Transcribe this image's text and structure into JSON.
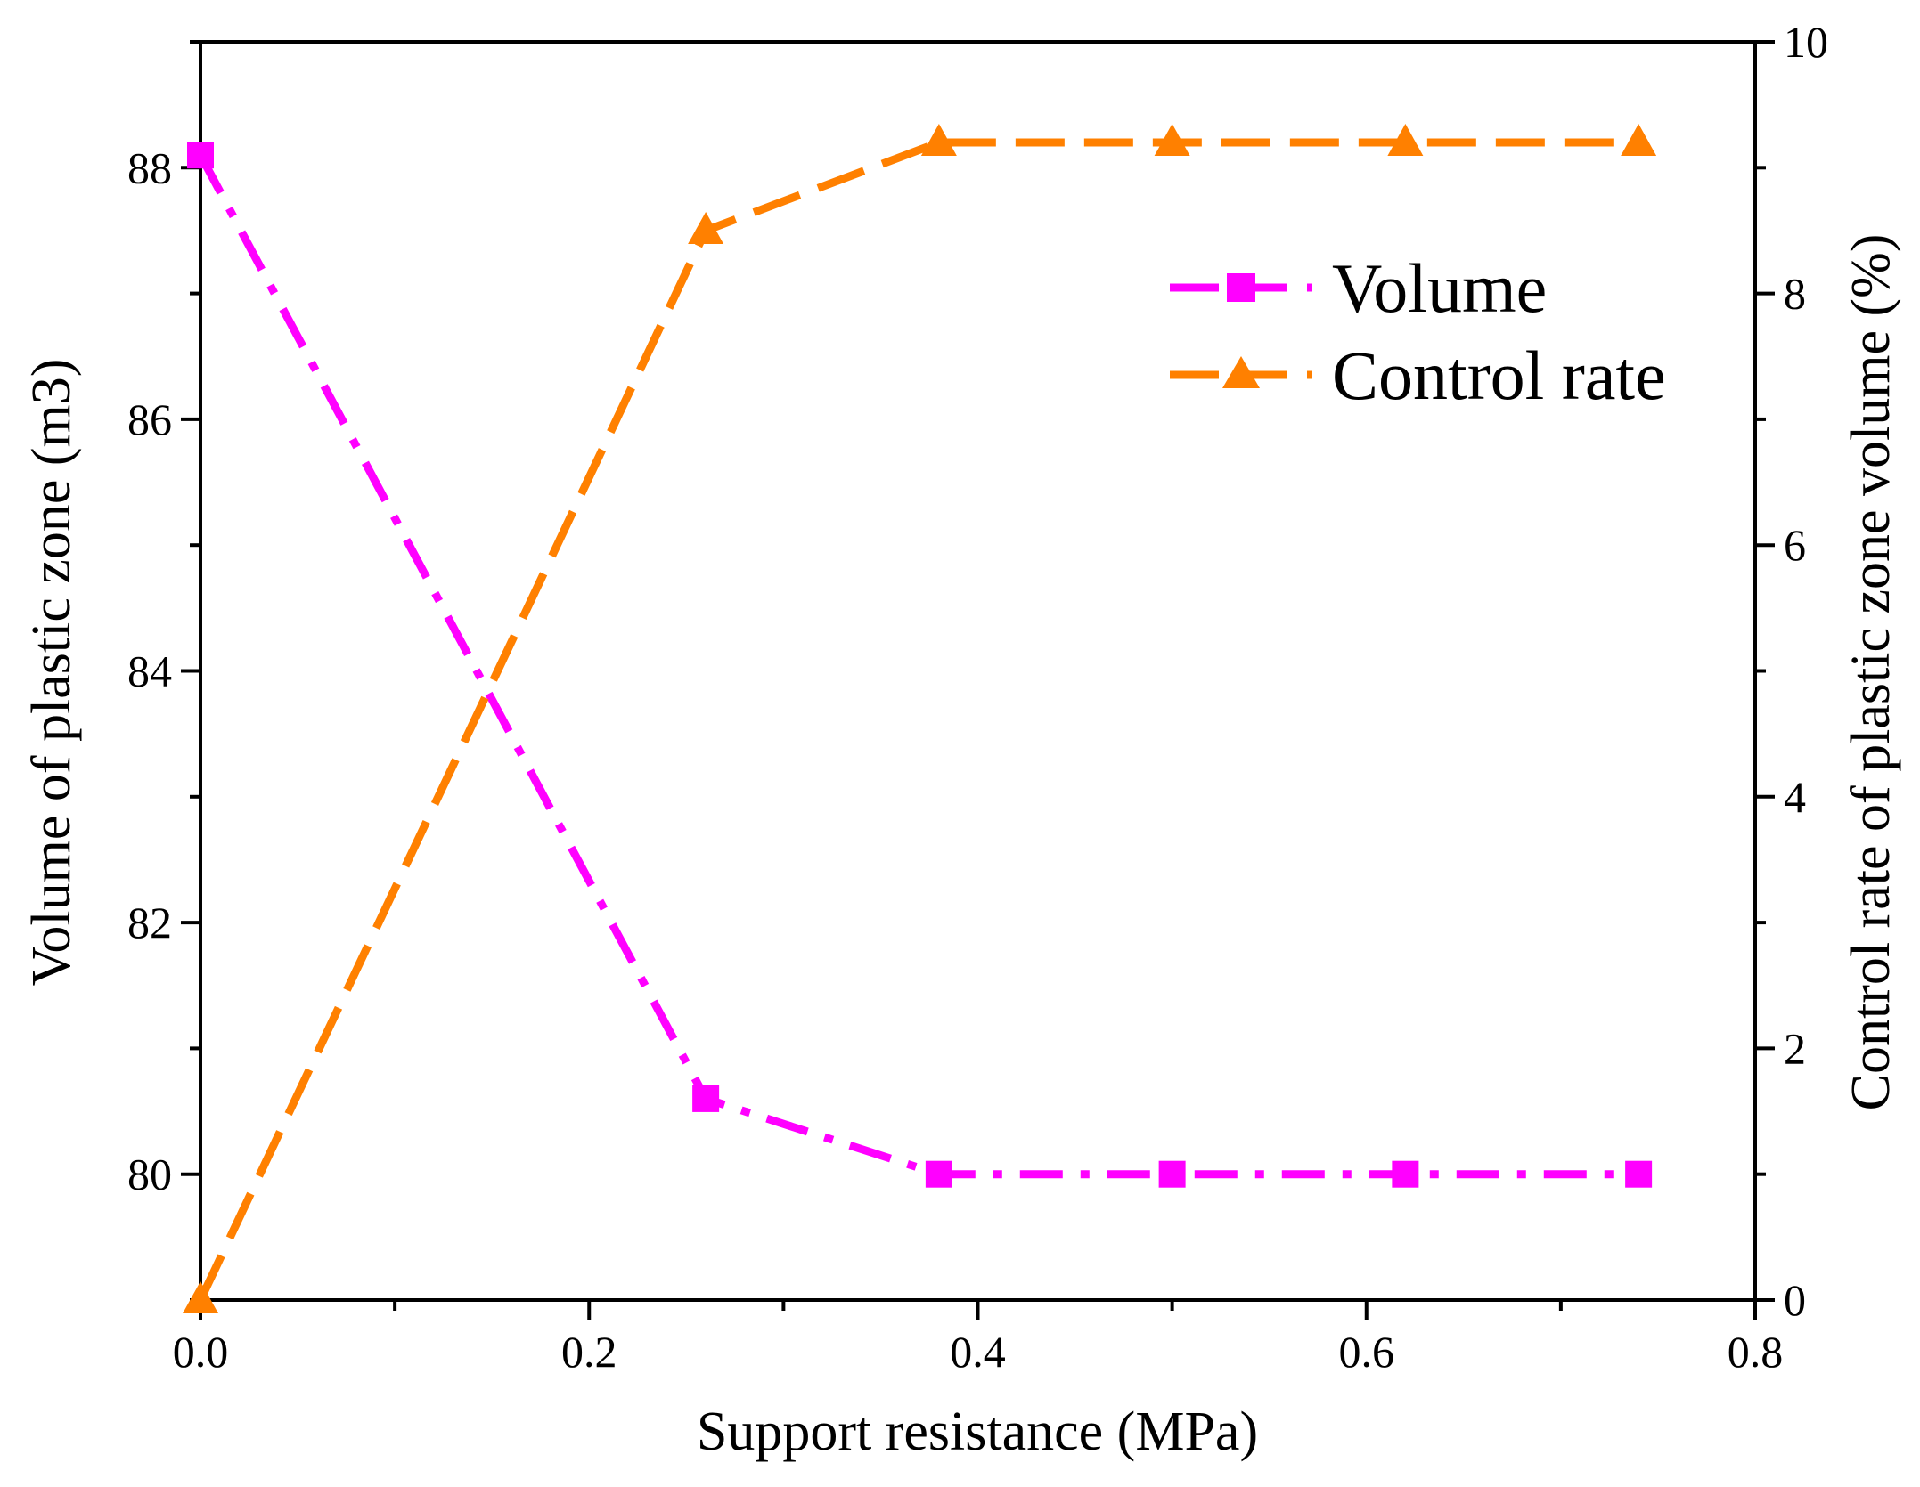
{
  "chart_data": {
    "type": "line",
    "xlabel": "Support resistance (MPa)",
    "ylabel_left": "Volume of plastic zone (m3)",
    "ylabel_right": "Control rate of plastic zone volume (%)",
    "x_ticks": [
      "0.0",
      "0.2",
      "0.4",
      "0.6",
      "0.8"
    ],
    "y_left_ticks": [
      "80",
      "82",
      "84",
      "86",
      "88"
    ],
    "y_right_ticks": [
      "0",
      "2",
      "4",
      "6",
      "8",
      "10"
    ],
    "xlim": [
      0,
      0.8
    ],
    "ylim_left": [
      79,
      89
    ],
    "ylim_right": [
      0,
      10
    ],
    "grid": false,
    "legend_position": "top-right",
    "series": [
      {
        "name": "Volume",
        "axis": "left",
        "color": "#ff00ff",
        "marker": "square",
        "line_style": "dash-dot",
        "x": [
          0,
          0.26,
          0.38,
          0.5,
          0.62,
          0.74
        ],
        "y": [
          88.1,
          80.6,
          80.0,
          80.0,
          80.0,
          80.0
        ]
      },
      {
        "name": "Control rate",
        "axis": "right",
        "color": "#ff8000",
        "marker": "triangle",
        "line_style": "dash",
        "x": [
          0,
          0.26,
          0.38,
          0.5,
          0.62,
          0.74
        ],
        "y": [
          0.0,
          8.5,
          9.2,
          9.2,
          9.2,
          9.2
        ]
      }
    ]
  }
}
